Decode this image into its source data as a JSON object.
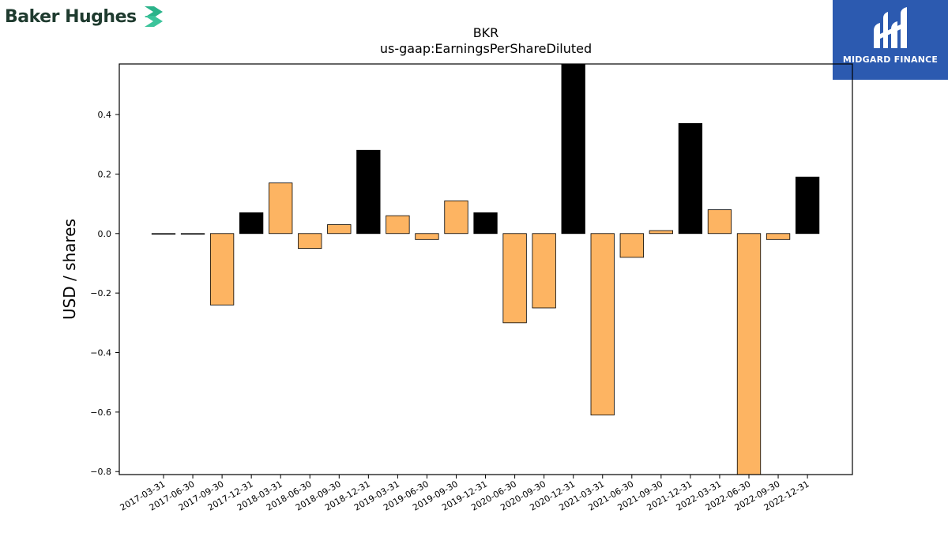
{
  "brand": {
    "name": "Baker Hughes",
    "accent": "#2bb38a"
  },
  "partner": {
    "name": "MIDGARD FINANCE",
    "background": "#2c5ab0"
  },
  "chart_data": {
    "type": "bar",
    "title": "BKR",
    "subtitle": "us-gaap:EarningsPerShareDiluted",
    "xlabel": "",
    "ylabel": "USD / shares",
    "ylim": [
      -0.81,
      0.57
    ],
    "yticks": [
      -0.8,
      -0.6,
      -0.4,
      -0.2,
      0.0,
      0.2,
      0.4
    ],
    "ytick_labels": [
      "−0.8",
      "−0.6",
      "−0.4",
      "−0.2",
      "0.0",
      "0.2",
      "0.4"
    ],
    "grid": false,
    "categories": [
      "2017-03-31",
      "2017-06-30",
      "2017-09-30",
      "2017-12-31",
      "2018-03-31",
      "2018-06-30",
      "2018-09-30",
      "2018-12-31",
      "2019-03-31",
      "2019-06-30",
      "2019-09-30",
      "2019-12-31",
      "2020-06-30",
      "2020-09-30",
      "2020-12-31",
      "2021-03-31",
      "2021-06-30",
      "2021-09-30",
      "2021-12-31",
      "2022-03-31",
      "2022-06-30",
      "2022-09-30",
      "2022-12-31"
    ],
    "values": [
      0.0,
      0.0,
      -0.24,
      0.07,
      0.17,
      -0.05,
      0.03,
      0.28,
      0.06,
      -0.02,
      0.11,
      0.07,
      -0.3,
      -0.25,
      0.6,
      -0.61,
      -0.08,
      0.01,
      0.37,
      0.08,
      -0.85,
      -0.02,
      0.19
    ],
    "colors": {
      "quarterly": "#fdb462",
      "year_end": "#000000"
    },
    "year_end": [
      false,
      false,
      false,
      true,
      false,
      false,
      false,
      true,
      false,
      false,
      false,
      true,
      false,
      false,
      true,
      false,
      false,
      false,
      true,
      false,
      false,
      false,
      true
    ]
  }
}
